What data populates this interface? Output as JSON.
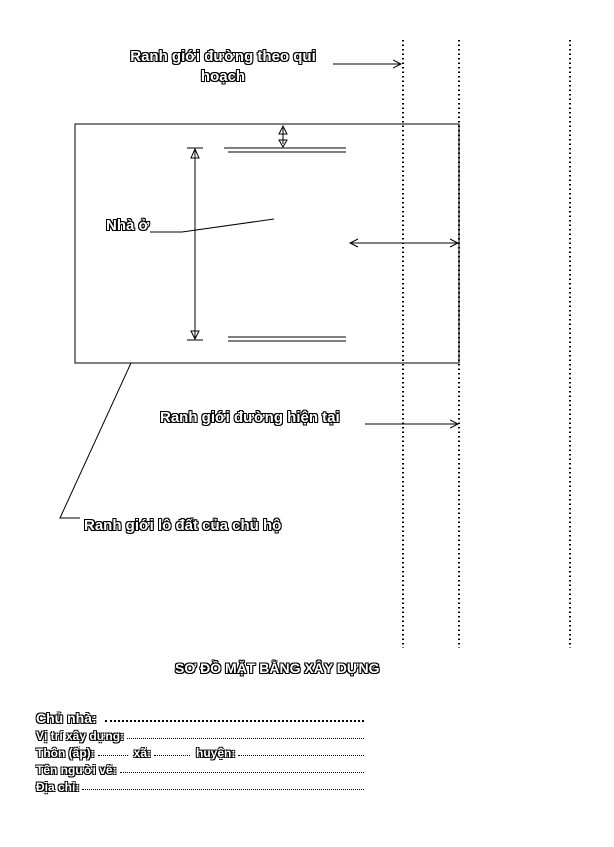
{
  "labels": {
    "road_planned": "Ranh giới đường theo qui hoạch",
    "house": "Nhà ở",
    "road_current": "Ranh giới đường hiện tại",
    "lot_boundary": "Ranh giới lô đất của chủ hộ",
    "title": "SƠ ĐỒ MẶT BẰNG XÂY DỰNG"
  },
  "form": {
    "owner": "Chủ nhà:",
    "location": "Vị trí xây dựng:",
    "village": "Thôn (ấp):",
    "commune": "xã:",
    "district": "huyện:",
    "drawer": "Tên người vẽ:",
    "address": "Địa chỉ:"
  }
}
